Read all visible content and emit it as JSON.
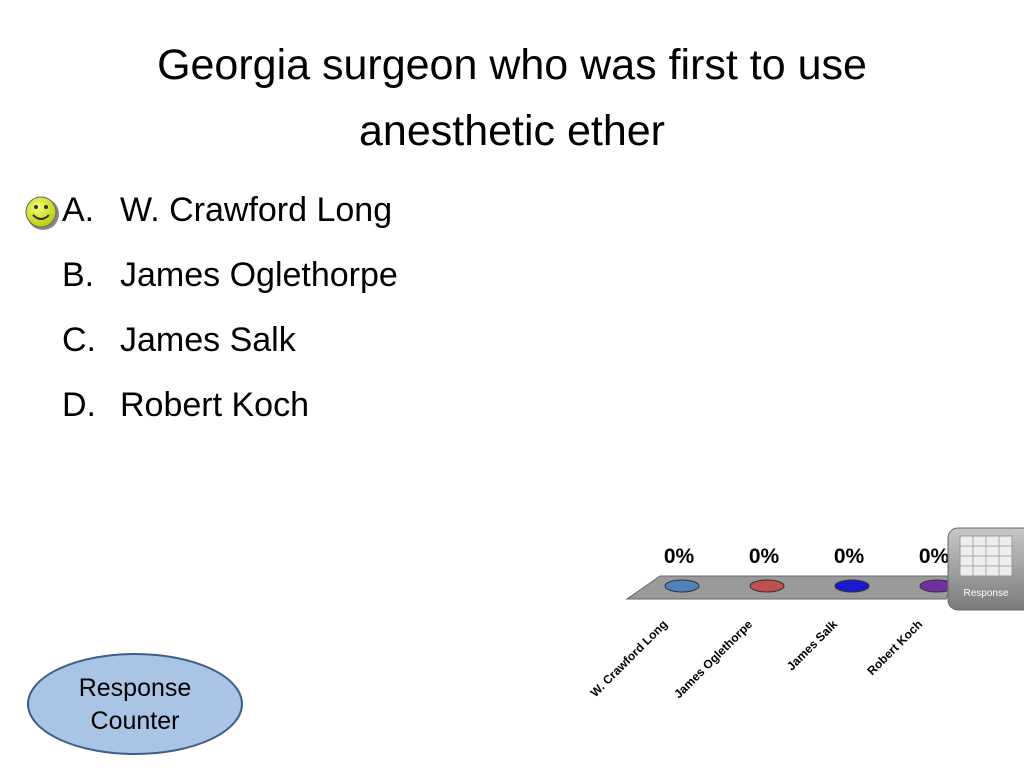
{
  "title": "Georgia surgeon who was first to use anesthetic ether",
  "options": [
    {
      "letter": "A.",
      "text": "W. Crawford Long"
    },
    {
      "letter": "B.",
      "text": "James Oglethorpe"
    },
    {
      "letter": "C.",
      "text": "James Salk"
    },
    {
      "letter": "D.",
      "text": "Robert Koch"
    }
  ],
  "chart_data": {
    "type": "bar",
    "categories": [
      "W. Crawford Long",
      "James Oglethorpe",
      "James Salk",
      "Robert Koch"
    ],
    "values": [
      0,
      0,
      0,
      0
    ],
    "value_labels": [
      "0%",
      "0%",
      "0%",
      "0%"
    ],
    "colors": [
      "#4f81bd",
      "#c0504d",
      "#1a1ad0",
      "#7030a0"
    ]
  },
  "response_button": "Response",
  "response_counter": "Response Counter"
}
